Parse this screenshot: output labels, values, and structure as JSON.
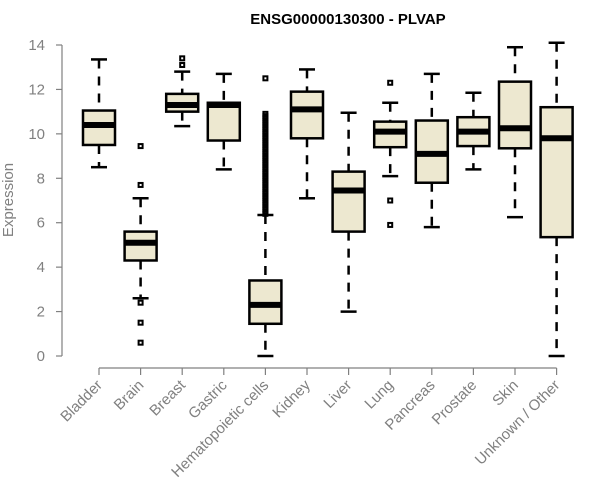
{
  "chart_data": {
    "type": "boxplot",
    "title": "ENSG00000130300 - PLVAP",
    "xlabel": "",
    "ylabel": "Expression",
    "ylim": [
      0,
      14
    ],
    "yticks": [
      0,
      2,
      4,
      6,
      8,
      10,
      12,
      14
    ],
    "grid": false,
    "box_color": "#ede8d0",
    "categories": [
      "Bladder",
      "Brain",
      "Breast",
      "Gastric",
      "Hematopoietic cells",
      "Kidney",
      "Liver",
      "Lung",
      "Pancreas",
      "Prostate",
      "Skin",
      "Unknown / Other"
    ],
    "boxes": [
      {
        "name": "Bladder",
        "whisker_low": 8.5,
        "q1": 9.5,
        "median": 10.4,
        "q3": 11.05,
        "whisker_high": 13.35,
        "outliers": []
      },
      {
        "name": "Brain",
        "whisker_low": 2.6,
        "q1": 4.3,
        "median": 5.1,
        "q3": 5.6,
        "whisker_high": 7.1,
        "outliers": [
          9.45,
          7.7,
          2.4,
          1.5,
          0.6
        ]
      },
      {
        "name": "Breast",
        "whisker_low": 10.35,
        "q1": 11.0,
        "median": 11.3,
        "q3": 11.8,
        "whisker_high": 12.8,
        "outliers": [
          13.4,
          13.1
        ]
      },
      {
        "name": "Gastric",
        "whisker_low": 8.4,
        "q1": 9.7,
        "median": 11.3,
        "q3": 11.4,
        "whisker_high": 12.7,
        "outliers": []
      },
      {
        "name": "Hematopoietic cells",
        "whisker_low": 0.0,
        "q1": 1.45,
        "median": 2.3,
        "q3": 3.4,
        "whisker_high": 6.35,
        "outliers": [
          12.5,
          10.9,
          10.8,
          10.7,
          10.6,
          10.5,
          10.4,
          10.3,
          10.2,
          10.1,
          10.0,
          9.9,
          9.8,
          9.7,
          9.6,
          9.5,
          9.4,
          9.3,
          9.2,
          9.1,
          9.0,
          8.9,
          8.8,
          8.7,
          8.6,
          8.5,
          8.4,
          8.3,
          8.2,
          8.1,
          8.0,
          7.9,
          7.8,
          7.7,
          7.6,
          7.5,
          7.4,
          7.3,
          7.2,
          7.1,
          7.0,
          6.9,
          6.8,
          6.7,
          6.6,
          6.5,
          6.4
        ]
      },
      {
        "name": "Kidney",
        "whisker_low": 7.1,
        "q1": 9.8,
        "median": 11.1,
        "q3": 11.9,
        "whisker_high": 12.9,
        "outliers": []
      },
      {
        "name": "Liver",
        "whisker_low": 2.0,
        "q1": 5.6,
        "median": 7.45,
        "q3": 8.3,
        "whisker_high": 10.95,
        "outliers": []
      },
      {
        "name": "Lung",
        "whisker_low": 8.1,
        "q1": 9.4,
        "median": 10.1,
        "q3": 10.55,
        "whisker_high": 11.4,
        "outliers": [
          12.3,
          7.0,
          5.9
        ]
      },
      {
        "name": "Pancreas",
        "whisker_low": 5.8,
        "q1": 7.8,
        "median": 9.1,
        "q3": 10.6,
        "whisker_high": 12.7,
        "outliers": []
      },
      {
        "name": "Prostate",
        "whisker_low": 8.4,
        "q1": 9.45,
        "median": 10.1,
        "q3": 10.75,
        "whisker_high": 11.85,
        "outliers": []
      },
      {
        "name": "Skin",
        "whisker_low": 6.25,
        "q1": 9.35,
        "median": 10.25,
        "q3": 12.35,
        "whisker_high": 13.9,
        "outliers": []
      },
      {
        "name": "Unknown / Other",
        "whisker_low": 0.0,
        "q1": 5.35,
        "median": 9.8,
        "q3": 11.2,
        "whisker_high": 14.1,
        "outliers": []
      }
    ]
  }
}
